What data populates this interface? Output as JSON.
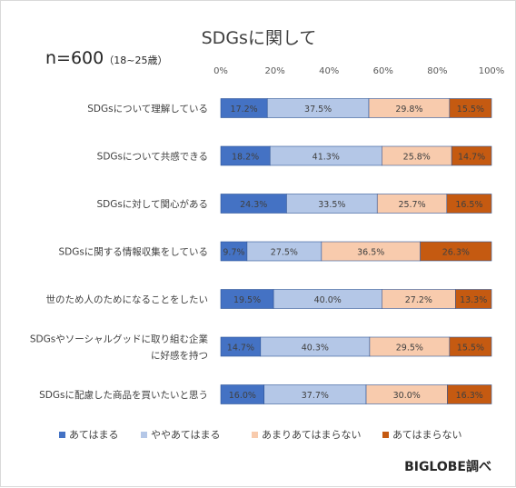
{
  "chart_data": {
    "type": "bar",
    "stacked": true,
    "orientation": "horizontal",
    "title": "SDGsに関して",
    "subtitle": "n=600",
    "subtitle_note": "（18~25歳）",
    "xlim": [
      0,
      100
    ],
    "x_ticks": [
      "0%",
      "20%",
      "40%",
      "60%",
      "80%",
      "100%"
    ],
    "categories": [
      "SDGsについて理解している",
      "SDGsについて共感できる",
      "SDGsに対して関心がある",
      "SDGsに関する情報収集をしている",
      "世のため人のためになることをしたい",
      "SDGsやソーシャルグッドに取り組む企業に好感を持つ",
      "SDGsに配慮した商品を買いたいと思う"
    ],
    "category_lines": [
      [
        "SDGsについて理解している"
      ],
      [
        "SDGsについて共感できる"
      ],
      [
        "SDGsに対して関心がある"
      ],
      [
        "SDGsに関する情報収集をしている"
      ],
      [
        "世のため人のためになることをしたい"
      ],
      [
        "SDGsやソーシャルグッドに取り組む企業",
        "に好感を持つ"
      ],
      [
        "SDGsに配慮した商品を買いたいと思う"
      ]
    ],
    "series": [
      {
        "name": "あてはまる",
        "color": "#4472c4",
        "values": [
          17.2,
          18.2,
          24.3,
          9.7,
          19.5,
          14.7,
          16.0
        ],
        "labels": [
          "17.2%",
          "18.2%",
          "24.3%",
          "9.7%",
          "19.5%",
          "14.7%",
          "16.0%"
        ]
      },
      {
        "name": "ややあてはまる",
        "color": "#b4c7e7",
        "values": [
          37.5,
          41.3,
          33.5,
          27.5,
          40.0,
          40.3,
          37.7
        ],
        "labels": [
          "37.5%",
          "41.3%",
          "33.5%",
          "27.5%",
          "40.0%",
          "40.3%",
          "37.7%"
        ]
      },
      {
        "name": "あまりあてはまらない",
        "color": "#f8cbad",
        "values": [
          29.8,
          25.8,
          25.7,
          36.5,
          27.2,
          29.5,
          30.0
        ],
        "labels": [
          "29.8%",
          "25.8%",
          "25.7%",
          "36.5%",
          "27.2%",
          "29.5%",
          "30.0%"
        ]
      },
      {
        "name": "あてはまらない",
        "color": "#c55a11",
        "values": [
          15.5,
          14.7,
          16.5,
          26.3,
          13.3,
          15.5,
          16.3
        ],
        "labels": [
          "15.5%",
          "14.7%",
          "16.5%",
          "26.3%",
          "13.3%",
          "15.5%",
          "16.3%"
        ]
      }
    ],
    "grid": false,
    "legend": "bottom"
  },
  "footer": "BIGLOBE調べ"
}
